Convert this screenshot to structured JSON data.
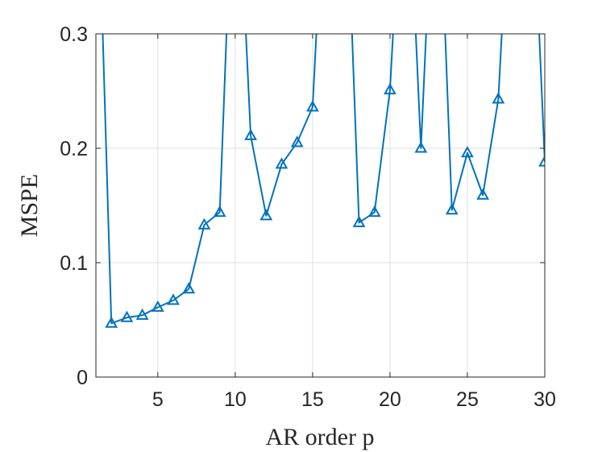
{
  "chart_data": {
    "type": "line",
    "xlabel": "AR order p",
    "ylabel": "MSPE",
    "xlim": [
      1,
      30
    ],
    "ylim": [
      0,
      0.3
    ],
    "grid": true,
    "xticks": [
      5,
      10,
      15,
      20,
      25,
      30
    ],
    "xtick_labels": [
      "5",
      "10",
      "15",
      "20",
      "25",
      "30"
    ],
    "yticks": [
      0,
      0.1,
      0.2,
      0.3
    ],
    "ytick_labels": [
      "0",
      "0.1",
      "0.2",
      "0.3"
    ],
    "color": "#0072BD",
    "marker": "triangle-open",
    "series": [
      {
        "x": [
          1,
          2,
          3,
          4,
          5,
          6,
          7,
          8,
          9,
          10,
          11,
          12,
          13,
          14,
          15,
          16,
          17,
          18,
          19,
          20,
          21,
          22,
          23,
          24,
          25,
          26,
          27,
          28,
          29,
          30
        ],
        "values": [
          0.5,
          0.047,
          0.052,
          0.054,
          0.061,
          0.067,
          0.077,
          0.133,
          0.144,
          0.5,
          0.211,
          0.141,
          0.186,
          0.205,
          0.236,
          0.5,
          0.5,
          0.135,
          0.144,
          0.251,
          0.5,
          0.2,
          0.5,
          0.146,
          0.196,
          0.159,
          0.243,
          0.5,
          0.5,
          0.188
        ]
      }
    ]
  }
}
